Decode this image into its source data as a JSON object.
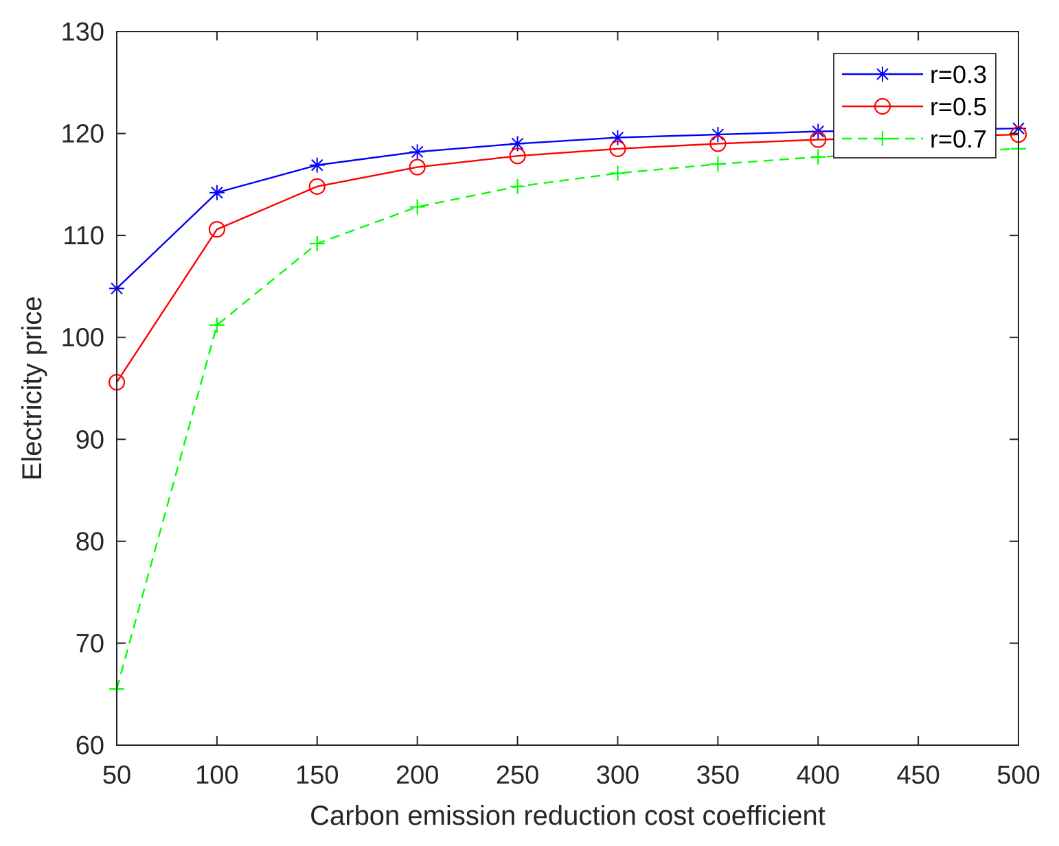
{
  "chart_data": {
    "type": "line",
    "title": "",
    "xlabel": "Carbon emission reduction cost coefficient",
    "ylabel": "Electricity price",
    "xlim": [
      50,
      500
    ],
    "ylim": [
      60,
      130
    ],
    "xticks": [
      50,
      100,
      150,
      200,
      250,
      300,
      350,
      400,
      450,
      500
    ],
    "yticks": [
      60,
      70,
      80,
      90,
      100,
      110,
      120,
      130
    ],
    "grid": false,
    "legend_position": "top-right",
    "x": [
      50,
      100,
      150,
      200,
      250,
      300,
      350,
      400,
      500
    ],
    "series": [
      {
        "name": "r=0.3",
        "color": "#0000ff",
        "marker": "asterisk",
        "line_style": "solid",
        "values": [
          104.8,
          114.2,
          116.9,
          118.2,
          119.0,
          119.6,
          119.9,
          120.2,
          120.5
        ]
      },
      {
        "name": "r=0.5",
        "color": "#ff0000",
        "marker": "circle",
        "line_style": "solid",
        "values": [
          95.6,
          110.6,
          114.8,
          116.7,
          117.8,
          118.5,
          119.0,
          119.4,
          119.9
        ]
      },
      {
        "name": "r=0.7",
        "color": "#00ff00",
        "marker": "plus",
        "line_style": "dashed",
        "values": [
          65.5,
          101.2,
          109.2,
          112.8,
          114.8,
          116.1,
          117.0,
          117.7,
          118.5
        ]
      }
    ]
  }
}
